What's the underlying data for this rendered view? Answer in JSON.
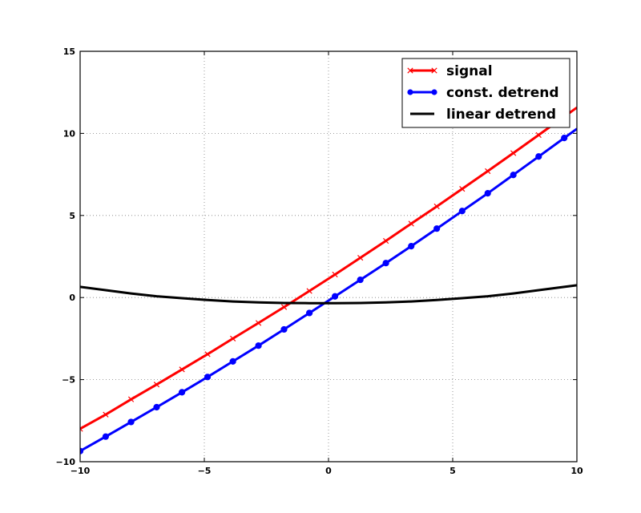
{
  "chart_data": {
    "type": "line",
    "xlim": [
      -10,
      10
    ],
    "ylim": [
      -10,
      15
    ],
    "xticks": [
      -10,
      -5,
      0,
      5,
      10
    ],
    "yticks": [
      -10,
      -5,
      0,
      5,
      10,
      15
    ],
    "xtick_labels": [
      "−10",
      "−5",
      "0",
      "5",
      "10"
    ],
    "ytick_labels": [
      "−10",
      "−5",
      "0",
      "5",
      "10",
      "15"
    ],
    "grid": true,
    "legend_position": "top-right",
    "x": [
      -10,
      -8.97,
      -7.95,
      -6.92,
      -5.9,
      -4.87,
      -3.85,
      -2.82,
      -1.79,
      -0.77,
      0.26,
      1.28,
      2.31,
      3.33,
      4.36,
      5.38,
      6.41,
      7.44,
      8.46,
      9.49
    ],
    "series": [
      {
        "name": "signal",
        "color": "#ff0000",
        "marker": "x",
        "values": [
          -8.0,
          -7.13,
          -6.2,
          -5.3,
          -4.38,
          -3.45,
          -2.5,
          -1.55,
          -0.58,
          0.4,
          1.4,
          2.42,
          3.45,
          4.5,
          5.55,
          6.62,
          7.7,
          8.8,
          9.9,
          11.02
        ]
      },
      {
        "name": "const. detrend",
        "color": "#0000ff",
        "marker": "o",
        "values": [
          -9.35,
          -8.47,
          -7.58,
          -6.68,
          -5.77,
          -4.84,
          -3.89,
          -2.93,
          -1.94,
          -0.94,
          0.07,
          1.08,
          2.1,
          3.13,
          4.2,
          5.27,
          6.35,
          7.47,
          8.59,
          9.72
        ]
      },
      {
        "name": "linear detrend",
        "color": "#000000",
        "marker": "none",
        "values": [
          0.65,
          0.45,
          0.25,
          0.08,
          -0.04,
          -0.15,
          -0.24,
          -0.3,
          -0.33,
          -0.34,
          -0.34,
          -0.33,
          -0.3,
          -0.24,
          -0.15,
          -0.04,
          0.08,
          0.25,
          0.45,
          0.65
        ]
      }
    ]
  }
}
